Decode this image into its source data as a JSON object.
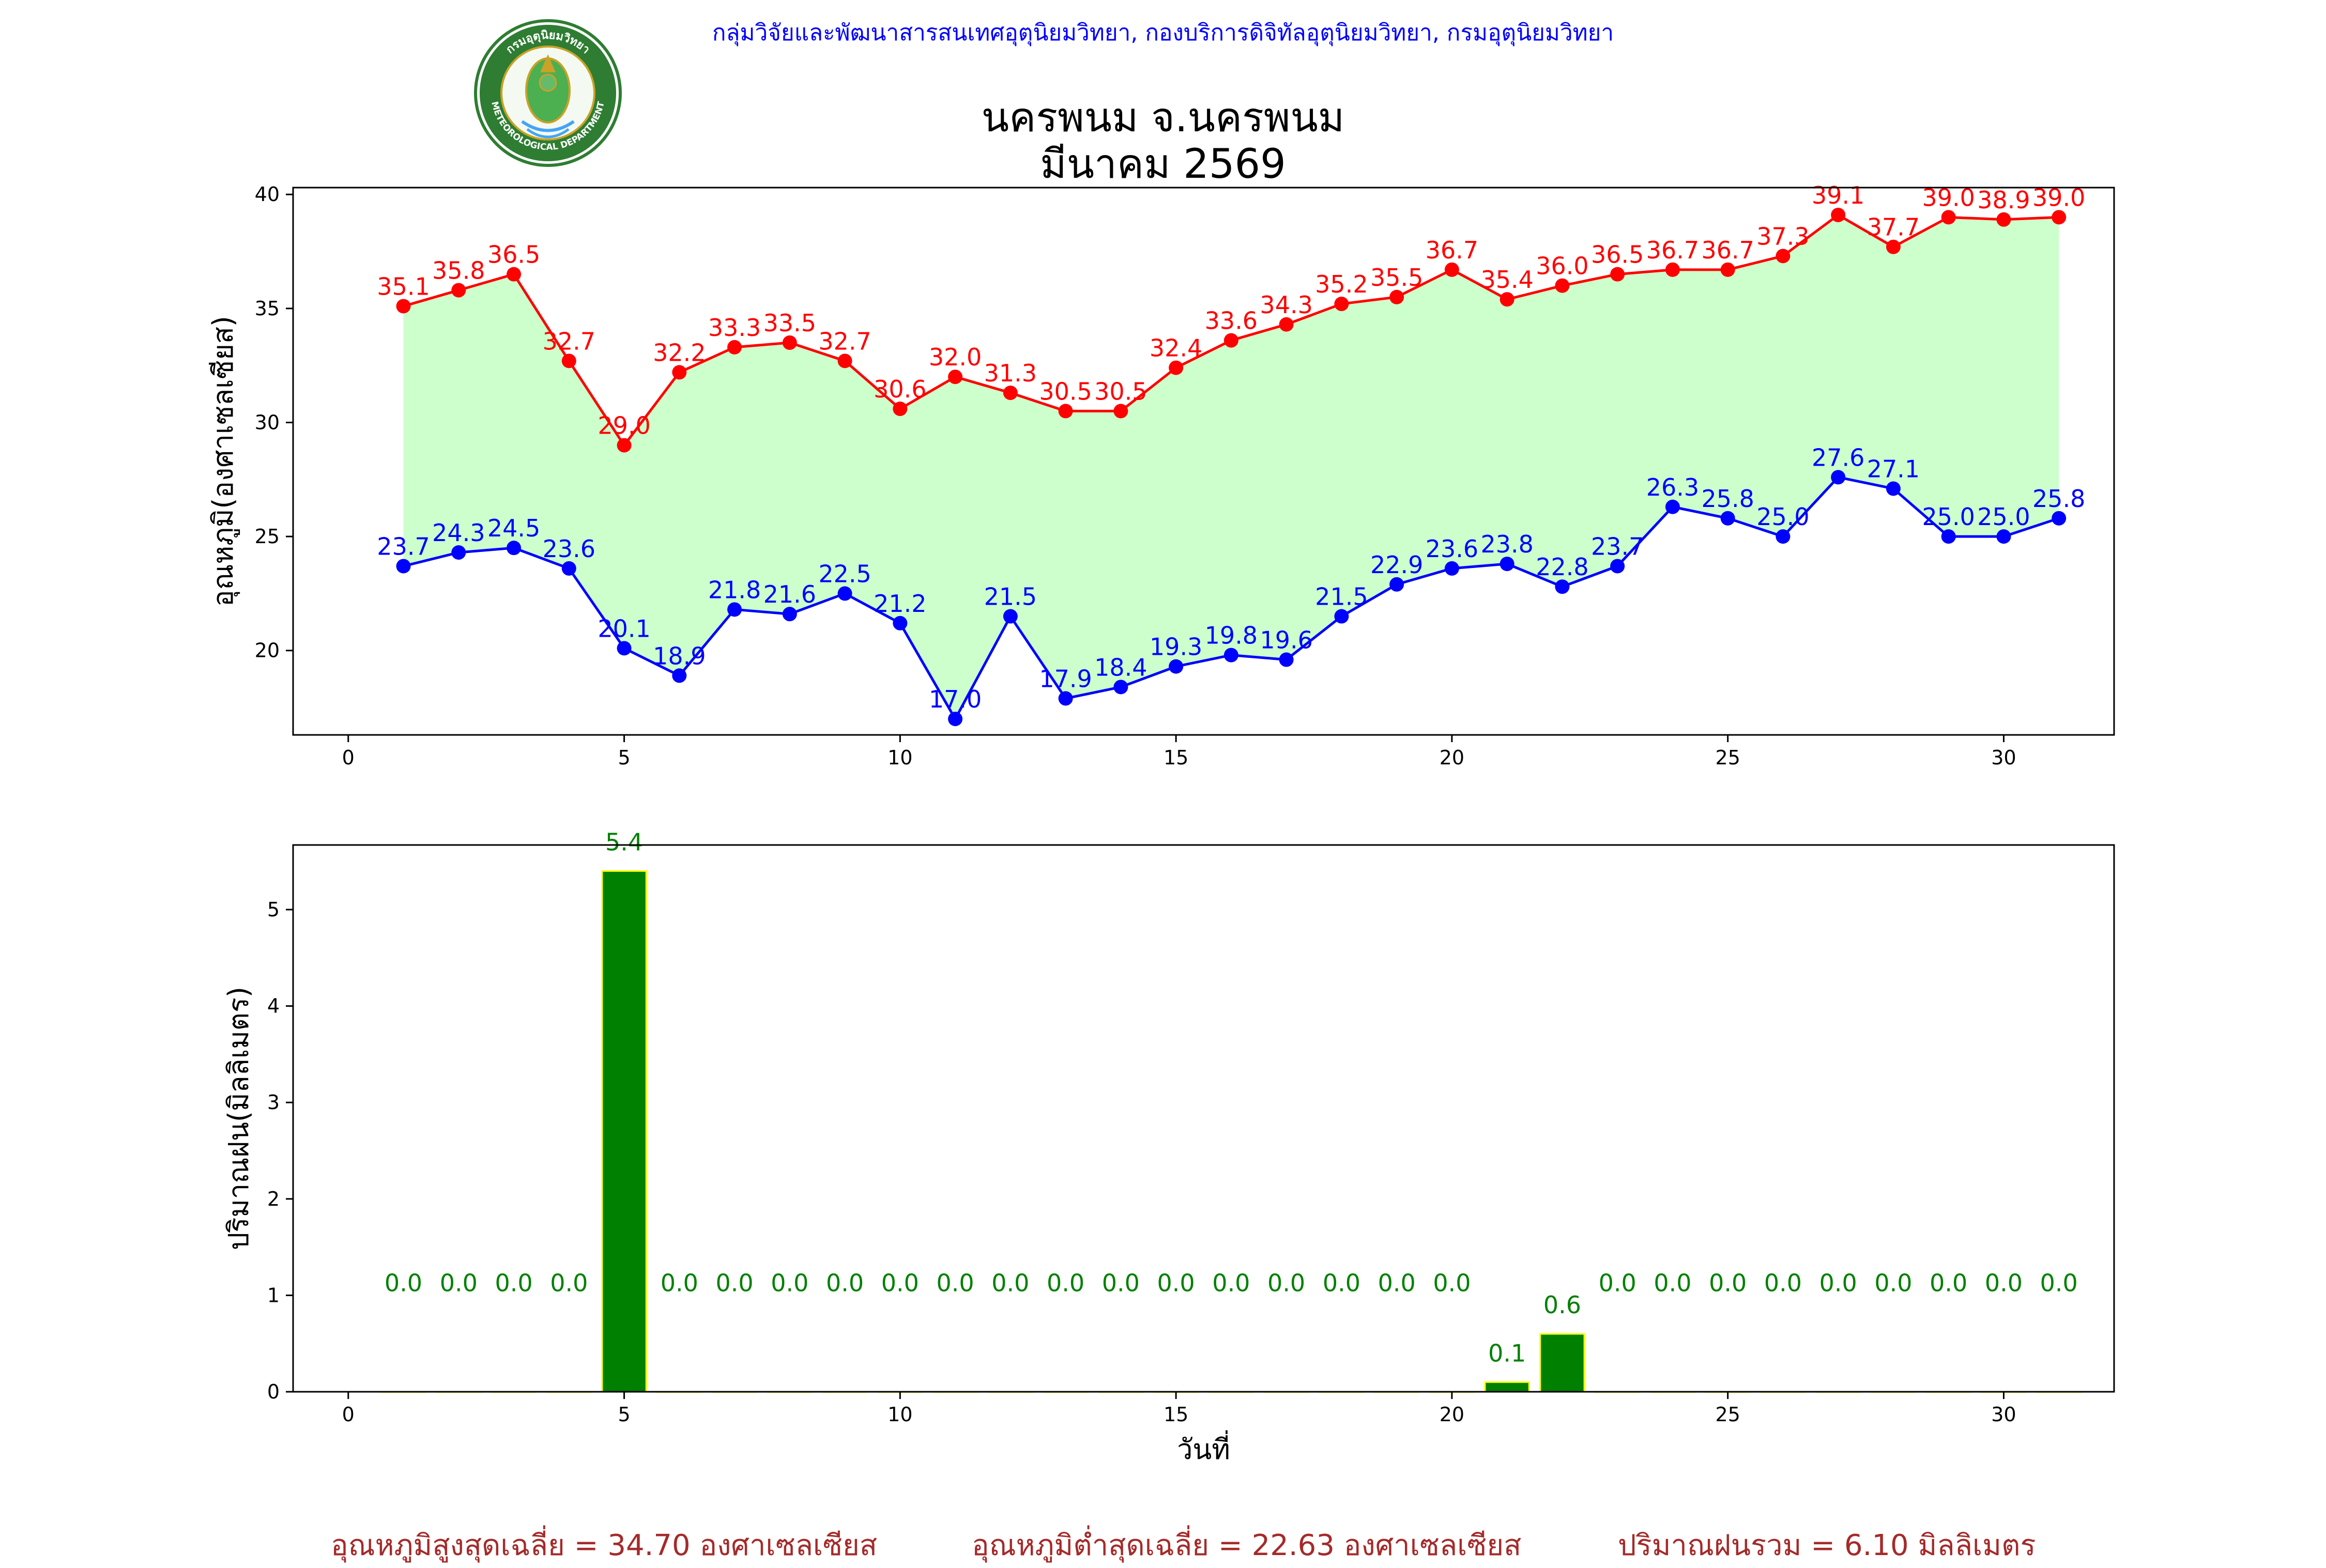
{
  "header": {
    "credit": "กลุ่มวิจัยและพัฒนาสารสนเทศอุตุนิยมวิทยา, กองบริการดิจิทัลอุตุนิยมวิทยา, กรมอุตุนิยมวิทยา",
    "title_line1": "นครพนม จ.นครพนม",
    "title_line2": "มีนาคม 2569",
    "logo_text_top": "กรมอุตุนิยมวิทยา",
    "logo_text_bottom": "METEOROLOGICAL DEPARTMENT"
  },
  "colors": {
    "max_temp": "#ff0000",
    "min_temp": "#0000ff",
    "fill": "#ccffcc",
    "rain_bar": "#008000",
    "rain_edge": "#ffff00",
    "rain_label": "#008000",
    "stats": "#a52a2a",
    "credit": "#0000ff"
  },
  "chart_data": [
    {
      "type": "line",
      "title": "นครพนม จ.นครพนม มีนาคม 2569",
      "xlabel": "",
      "ylabel": "อุณหภูมิ(องศาเซลเซียส)",
      "xlim": [
        -1,
        32
      ],
      "ylim": [
        16.3,
        40.3
      ],
      "xticks": [
        "0",
        "5",
        "10",
        "15",
        "20",
        "25",
        "30"
      ],
      "yticks": [
        "20",
        "25",
        "30",
        "35",
        "40"
      ],
      "x": [
        1,
        2,
        3,
        4,
        5,
        6,
        7,
        8,
        9,
        10,
        11,
        12,
        13,
        14,
        15,
        16,
        17,
        18,
        19,
        20,
        21,
        22,
        23,
        24,
        25,
        26,
        27,
        28,
        29,
        30,
        31
      ],
      "series": [
        {
          "name": "max",
          "values": [
            35.1,
            35.8,
            36.5,
            32.7,
            29.0,
            32.2,
            33.3,
            33.5,
            32.7,
            30.6,
            32.0,
            31.3,
            30.5,
            30.5,
            32.4,
            33.6,
            34.3,
            35.2,
            35.5,
            36.7,
            35.4,
            36.0,
            36.5,
            36.7,
            36.7,
            37.3,
            39.1,
            37.7,
            39.0,
            38.9,
            39.0
          ]
        },
        {
          "name": "min",
          "values": [
            23.7,
            24.3,
            24.5,
            23.6,
            20.1,
            18.9,
            21.8,
            21.6,
            22.5,
            21.2,
            17.0,
            21.5,
            17.9,
            18.4,
            19.3,
            19.8,
            19.6,
            21.5,
            22.9,
            23.6,
            23.8,
            22.8,
            23.7,
            26.3,
            25.8,
            25.0,
            27.6,
            27.1,
            25.0,
            25.0,
            25.8
          ]
        }
      ]
    },
    {
      "type": "bar",
      "xlabel": "วันที่",
      "ylabel": "ปริมาณฝน(มิลลิเมตร)",
      "xlim": [
        -1,
        32
      ],
      "ylim": [
        0,
        5.67
      ],
      "xticks": [
        "0",
        "5",
        "10",
        "15",
        "20",
        "25",
        "30"
      ],
      "yticks": [
        "0",
        "1",
        "2",
        "3",
        "4",
        "5"
      ],
      "x": [
        1,
        2,
        3,
        4,
        5,
        6,
        7,
        8,
        9,
        10,
        11,
        12,
        13,
        14,
        15,
        16,
        17,
        18,
        19,
        20,
        21,
        22,
        23,
        24,
        25,
        26,
        27,
        28,
        29,
        30,
        31
      ],
      "values": [
        0.0,
        0.0,
        0.0,
        0.0,
        5.4,
        0.0,
        0.0,
        0.0,
        0.0,
        0.0,
        0.0,
        0.0,
        0.0,
        0.0,
        0.0,
        0.0,
        0.0,
        0.0,
        0.0,
        0.0,
        0.1,
        0.6,
        0.0,
        0.0,
        0.0,
        0.0,
        0.0,
        0.0,
        0.0,
        0.0,
        0.0
      ]
    }
  ],
  "stats": {
    "avg_max": "อุณหภูมิสูงสุดเฉลี่ย = 34.70 องศาเซลเซียส",
    "avg_min": "อุณหภูมิต่ำสุดเฉลี่ย = 22.63 องศาเซลเซียส",
    "rain_total": "ปริมาณฝนรวม = 6.10 มิลลิเมตร"
  }
}
